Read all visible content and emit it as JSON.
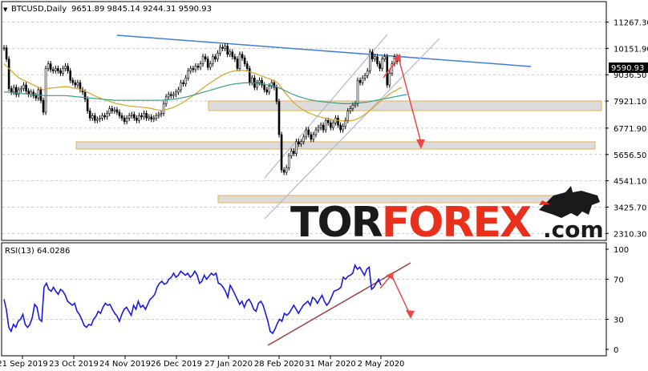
{
  "header": {
    "arrow_glyph": "▼",
    "symbol": "BTCUSD,Daily",
    "ohlc": "9651.89 9845.14 9244.31 9590.93"
  },
  "rsi_header": "RSI(13) 64.0286",
  "watermark": {
    "part1": "TOR",
    "part2": "FOREX",
    "part3": ".com",
    "color1": "#1a1a1a",
    "color2": "#e8301c"
  },
  "colors": {
    "price": "#000000",
    "ma_fast": "#d9a326",
    "ma_slow": "#3a9e8f",
    "trend_blue": "#3d7fd6",
    "channel": "#aab8d6",
    "zone_fill": "#dcdcdc",
    "zone_border": "#e8b04a",
    "arrow": "#e84a4a",
    "rsi_line": "#1a1ae0",
    "rsi_trend": "#a04040",
    "current_price_bg": "#000000",
    "axis_text": "#000000"
  },
  "chart_data": [
    {
      "type": "candlestick",
      "title": "BTCUSD,Daily",
      "y_ticks": [
        "11267.30",
        "10151.90",
        "9036.50",
        "7921.10",
        "6771.90",
        "5656.50",
        "4541.10",
        "3425.70",
        "2310.30"
      ],
      "y_tick_values": [
        11267.3,
        10151.9,
        9036.5,
        7921.1,
        6771.9,
        5656.5,
        4541.1,
        3425.7,
        2310.3
      ],
      "ylim": [
        2050,
        12100
      ],
      "current_price": "9590.93",
      "x_ticks": [
        "21 Sep 2019",
        "23 Oct 2019",
        "24 Nov 2019",
        "26 Dec 2019",
        "27 Jan 2020",
        "28 Feb 2020",
        "31 Mar 2020",
        "2 May 2020"
      ],
      "series": [
        {
          "values": [
            10170,
            9700,
            8450,
            8300,
            8500,
            8200,
            8400,
            8450,
            8600,
            8350,
            8200,
            8300,
            8150,
            8050,
            8400,
            7950,
            7450,
            9300,
            9500,
            9250,
            9200,
            9300,
            9200,
            9100,
            9300,
            9400,
            9200,
            8800,
            8700,
            8600,
            8700,
            8400,
            8300,
            8000,
            7500,
            7200,
            7300,
            7100,
            7150,
            7200,
            7300,
            7250,
            7400,
            7600,
            7500,
            7550,
            7450,
            7300,
            7200,
            7050,
            7200,
            7300,
            7350,
            7200,
            7100,
            7300,
            7250,
            7400,
            7200,
            7250,
            7150,
            7200,
            7300,
            7350,
            7400,
            7800,
            8100,
            8200,
            8150,
            8200,
            8300,
            8400,
            8700,
            8650,
            8900,
            9200,
            9300,
            9250,
            9400,
            9350,
            9500,
            9800,
            9700,
            9350,
            9500,
            9800,
            9700,
            9950,
            10200,
            10150,
            10250,
            9900,
            10000,
            9800,
            9700,
            9300,
            9900,
            9750,
            9500,
            9300,
            8700,
            8900,
            8500,
            8700,
            8800,
            8600,
            8400,
            8300,
            8550,
            8700,
            8500,
            7900,
            6500,
            5000,
            4900,
            5100,
            5600,
            5800,
            5700,
            6200,
            6100,
            6200,
            6400,
            6700,
            6500,
            6300,
            6500,
            6700,
            6800,
            6900,
            6700,
            7100,
            7000,
            6800,
            7000,
            7200,
            6900,
            6700,
            6850,
            7100,
            7500,
            7600,
            7750,
            7800,
            8800,
            8700,
            8900,
            9000,
            9200,
            10000,
            9700,
            9800,
            9500,
            9300,
            9700,
            9800,
            8600,
            9100,
            9500,
            9800,
            9590
          ],
          "ma_fast": [
            9500,
            9400,
            9300,
            9200,
            9100,
            9000,
            8900,
            8850,
            8800,
            8750,
            8700,
            8650,
            8600,
            8550,
            8500,
            8450,
            8400,
            8420,
            8450,
            8470,
            8480,
            8490,
            8500,
            8510,
            8520,
            8530,
            8520,
            8500,
            8480,
            8460,
            8440,
            8410,
            8380,
            8340,
            8290,
            8240,
            8190,
            8140,
            8090,
            8050,
            8010,
            7970,
            7930,
            7900,
            7870,
            7840,
            7810,
            7790,
            7770,
            7750,
            7730,
            7710,
            7700,
            7690,
            7680,
            7670,
            7660,
            7650,
            7640,
            7620,
            7600,
            7580,
            7560,
            7540,
            7530,
            7540,
            7560,
            7590,
            7620,
            7660,
            7700,
            7750,
            7810,
            7870,
            7940,
            8010,
            8080,
            8150,
            8230,
            8310,
            8390,
            8470,
            8550,
            8620,
            8690,
            8760,
            8830,
            8900,
            8960,
            9020,
            9070,
            9110,
            9150,
            9180,
            9200,
            9210,
            9220,
            9220,
            9210,
            9190,
            9160,
            9130,
            9100,
            9060,
            9020,
            8980,
            8940,
            8900,
            8860,
            8820,
            8780,
            8720,
            8620,
            8480,
            8340,
            8200,
            8080,
            7960,
            7850,
            7760,
            7680,
            7600,
            7530,
            7470,
            7420,
            7380,
            7340,
            7300,
            7270,
            7240,
            7210,
            7190,
            7170,
            7150,
            7130,
            7110,
            7100,
            7090,
            7080,
            7070,
            7070,
            7080,
            7100,
            7130,
            7170,
            7220,
            7290,
            7360,
            7440,
            7520,
            7610,
            7710,
            7800,
            7890,
            7980,
            8060,
            8140,
            8220,
            8280,
            8340,
            8400,
            8460,
            8500
          ],
          "ma_slow": [
            8300,
            8300,
            8290,
            8280,
            8270,
            8260,
            8250,
            8240,
            8230,
            8220,
            8210,
            8200,
            8190,
            8180,
            8170,
            8160,
            8150,
            8150,
            8150,
            8150,
            8150,
            8150,
            8150,
            8150,
            8150,
            8150,
            8140,
            8130,
            8120,
            8110,
            8100,
            8090,
            8080,
            8070,
            8060,
            8050,
            8040,
            8030,
            8020,
            8010,
            8000,
            7990,
            7980,
            7970,
            7960,
            7950,
            7950,
            7950,
            7950,
            7950,
            7950,
            7950,
            7950,
            7950,
            7950,
            7950,
            7950,
            7950,
            7950,
            7950,
            7950,
            7950,
            7950,
            7950,
            7950,
            7960,
            7970,
            7980,
            7990,
            8000,
            8010,
            8030,
            8050,
            8070,
            8090,
            8110,
            8140,
            8170,
            8200,
            8230,
            8260,
            8290,
            8320,
            8350,
            8380,
            8410,
            8440,
            8470,
            8500,
            8530,
            8560,
            8590,
            8610,
            8630,
            8650,
            8660,
            8670,
            8680,
            8690,
            8690,
            8690,
            8690,
            8680,
            8670,
            8660,
            8650,
            8630,
            8610,
            8590,
            8570,
            8550,
            8520,
            8480,
            8430,
            8380,
            8330,
            8280,
            8230,
            8190,
            8150,
            8110,
            8080,
            8050,
            8020,
            7990,
            7970,
            7950,
            7930,
            7910,
            7900,
            7890,
            7880,
            7870,
            7860,
            7850,
            7840,
            7830,
            7820,
            7810,
            7810,
            7810,
            7810,
            7820,
            7830,
            7840,
            7850,
            7860,
            7870,
            7880,
            7900,
            7920,
            7940,
            7960,
            7980,
            8000,
            8020,
            8040,
            8060,
            8080,
            8100,
            8120,
            8140,
            8160,
            8180,
            8200
          ]
        }
      ]
    },
    {
      "type": "line",
      "title": "RSI(13) 64.0286",
      "y_ticks": [
        "100",
        "70",
        "30",
        "0"
      ],
      "y_tick_values": [
        100,
        70,
        30,
        0
      ],
      "ylim": [
        0,
        100
      ],
      "series": [
        {
          "name": "RSI(13)",
          "values": [
            50,
            40,
            22,
            18,
            25,
            22,
            28,
            30,
            35,
            25,
            22,
            25,
            32,
            45,
            42,
            30,
            28,
            62,
            66,
            60,
            58,
            62,
            58,
            55,
            60,
            58,
            54,
            48,
            46,
            44,
            46,
            38,
            35,
            30,
            24,
            22,
            25,
            24,
            30,
            33,
            38,
            36,
            42,
            46,
            44,
            45,
            40,
            36,
            33,
            28,
            35,
            40,
            42,
            38,
            34,
            44,
            40,
            48,
            42,
            44,
            40,
            45,
            50,
            52,
            55,
            62,
            66,
            68,
            65,
            66,
            70,
            72,
            76,
            72,
            74,
            78,
            76,
            74,
            76,
            72,
            74,
            78,
            74,
            66,
            68,
            74,
            70,
            73,
            76,
            74,
            76,
            66,
            65,
            62,
            58,
            52,
            64,
            60,
            55,
            50,
            45,
            48,
            42,
            48,
            50,
            46,
            40,
            38,
            46,
            48,
            44,
            36,
            28,
            18,
            16,
            20,
            26,
            30,
            28,
            36,
            34,
            36,
            40,
            44,
            40,
            36,
            40,
            44,
            46,
            48,
            44,
            52,
            50,
            46,
            50,
            54,
            48,
            44,
            47,
            52,
            58,
            59,
            60,
            62,
            72,
            70,
            73,
            74,
            76,
            84,
            80,
            82,
            78,
            74,
            80,
            82,
            60,
            62,
            66,
            70,
            64
          ]
        }
      ]
    }
  ]
}
